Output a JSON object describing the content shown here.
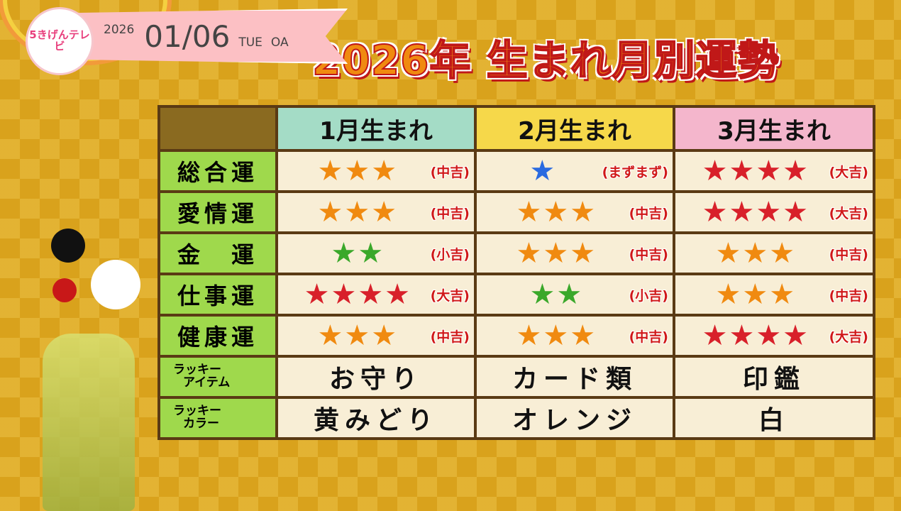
{
  "logo": {
    "text": "5きげんテレビ"
  },
  "date": {
    "year": "2026",
    "month_day": "01/06",
    "weekday": "TUE",
    "onair": "OA"
  },
  "title": "2026年 生まれ月別運勢",
  "colors": {
    "orange": "#f08a10",
    "red": "#d8202a",
    "green": "#3aa82a",
    "blue": "#2a6ae0"
  },
  "columns": [
    "1月生まれ",
    "2月生まれ",
    "3月生まれ"
  ],
  "rows": [
    {
      "label": "総合運",
      "cells": [
        {
          "stars": 3,
          "color": "orange",
          "rating": "(中吉)"
        },
        {
          "stars": 1,
          "color": "blue",
          "rating": "(まずまず)"
        },
        {
          "stars": 4,
          "color": "red",
          "rating": "(大吉)"
        }
      ]
    },
    {
      "label": "愛情運",
      "cells": [
        {
          "stars": 3,
          "color": "orange",
          "rating": "(中吉)"
        },
        {
          "stars": 3,
          "color": "orange",
          "rating": "(中吉)"
        },
        {
          "stars": 4,
          "color": "red",
          "rating": "(大吉)"
        }
      ]
    },
    {
      "label": "金　運",
      "cells": [
        {
          "stars": 2,
          "color": "green",
          "rating": "(小吉)"
        },
        {
          "stars": 3,
          "color": "orange",
          "rating": "(中吉)"
        },
        {
          "stars": 3,
          "color": "orange",
          "rating": "(中吉)"
        }
      ]
    },
    {
      "label": "仕事運",
      "cells": [
        {
          "stars": 4,
          "color": "red",
          "rating": "(大吉)"
        },
        {
          "stars": 2,
          "color": "green",
          "rating": "(小吉)"
        },
        {
          "stars": 3,
          "color": "orange",
          "rating": "(中吉)"
        }
      ]
    },
    {
      "label": "健康運",
      "cells": [
        {
          "stars": 3,
          "color": "orange",
          "rating": "(中吉)"
        },
        {
          "stars": 3,
          "color": "orange",
          "rating": "(中吉)"
        },
        {
          "stars": 4,
          "color": "red",
          "rating": "(大吉)"
        }
      ]
    }
  ],
  "lucky_item": {
    "label_line1": "ラッキー",
    "label_line2": "アイテム",
    "values": [
      "お守り",
      "カード類",
      "印鑑"
    ]
  },
  "lucky_color": {
    "label_line1": "ラッキー",
    "label_line2": "カラー",
    "values": [
      "黄みどり",
      "オレンジ",
      "白"
    ]
  }
}
